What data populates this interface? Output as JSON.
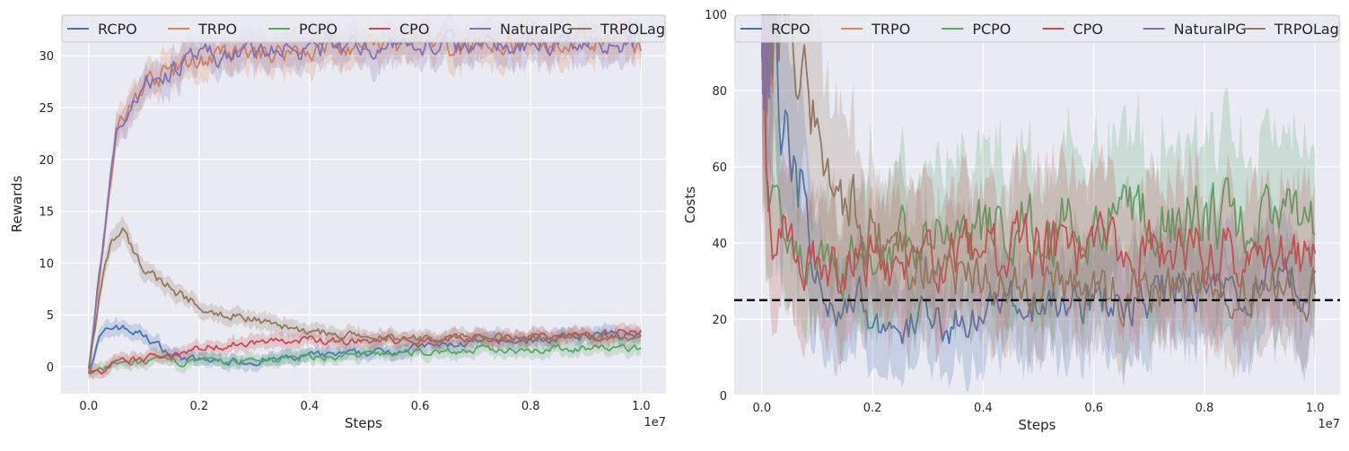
{
  "chart_data": [
    {
      "type": "line",
      "title": "",
      "xlabel": "Steps",
      "ylabel": "Rewards",
      "x_offset_label": "1e7",
      "xlim": [
        -0.05,
        1.045
      ],
      "ylim": [
        -2.6,
        34.0
      ],
      "xticks": [
        0.0,
        0.2,
        0.4,
        0.6,
        0.8,
        1.0
      ],
      "xtick_labels": [
        "0.0",
        "0.2",
        "0.4",
        "0.6",
        "0.8",
        "1.0"
      ],
      "yticks": [
        0,
        5,
        10,
        15,
        20,
        25,
        30
      ],
      "ytick_labels": [
        "0",
        "5",
        "10",
        "15",
        "20",
        "25",
        "30"
      ],
      "grid": true,
      "legend_position": "top",
      "series": [
        {
          "name": "RCPO",
          "color": "#4c72b0",
          "x": [
            0.0,
            0.02,
            0.05,
            0.1,
            0.15,
            0.2,
            0.3,
            0.4,
            0.5,
            0.6,
            0.7,
            0.8,
            0.9,
            1.0
          ],
          "values": [
            -0.4,
            2.8,
            4.0,
            3.0,
            1.2,
            0.6,
            0.5,
            1.0,
            1.3,
            1.9,
            2.3,
            2.5,
            3.0,
            3.2
          ]
        },
        {
          "name": "TRPO",
          "color": "#dd8452",
          "x": [
            0.0,
            0.02,
            0.05,
            0.1,
            0.15,
            0.2,
            0.3,
            0.4,
            0.5,
            0.6,
            0.7,
            0.8,
            0.9,
            1.0
          ],
          "values": [
            -0.4,
            9.0,
            22.5,
            27.2,
            28.6,
            29.6,
            30.2,
            30.6,
            30.8,
            31.0,
            31.1,
            31.2,
            31.3,
            31.3
          ]
        },
        {
          "name": "PCPO",
          "color": "#55a868",
          "x": [
            0.0,
            0.02,
            0.05,
            0.1,
            0.15,
            0.2,
            0.3,
            0.4,
            0.5,
            0.6,
            0.7,
            0.8,
            0.9,
            1.0
          ],
          "values": [
            -0.4,
            -0.3,
            0.2,
            0.5,
            0.5,
            0.4,
            0.6,
            0.9,
            1.1,
            1.4,
            1.6,
            1.7,
            1.8,
            1.8
          ]
        },
        {
          "name": "CPO",
          "color": "#c44e52",
          "x": [
            0.0,
            0.02,
            0.05,
            0.1,
            0.15,
            0.2,
            0.3,
            0.4,
            0.5,
            0.6,
            0.7,
            0.8,
            0.9,
            1.0
          ],
          "values": [
            -0.4,
            -0.6,
            0.3,
            0.8,
            1.2,
            1.8,
            2.4,
            2.5,
            2.5,
            2.6,
            2.8,
            2.9,
            3.0,
            3.3
          ]
        },
        {
          "name": "NaturalPG",
          "color": "#8172b3",
          "x": [
            0.0,
            0.02,
            0.05,
            0.1,
            0.15,
            0.2,
            0.3,
            0.4,
            0.5,
            0.6,
            0.7,
            0.8,
            0.9,
            1.0
          ],
          "values": [
            -0.4,
            9.2,
            22.7,
            27.4,
            28.7,
            29.7,
            30.3,
            30.7,
            30.9,
            31.1,
            31.2,
            31.3,
            31.4,
            31.4
          ]
        },
        {
          "name": "TRPOLag",
          "color": "#937860",
          "x": [
            0.0,
            0.02,
            0.04,
            0.06,
            0.08,
            0.1,
            0.15,
            0.2,
            0.3,
            0.4,
            0.5,
            0.6,
            0.7,
            0.8,
            0.9,
            1.0
          ],
          "values": [
            -0.4,
            7.0,
            12.0,
            13.0,
            11.0,
            9.5,
            7.5,
            5.8,
            4.6,
            3.4,
            2.8,
            2.7,
            2.7,
            2.8,
            2.8,
            2.8
          ]
        }
      ]
    },
    {
      "type": "line",
      "title": "",
      "xlabel": "Steps",
      "ylabel": "Costs",
      "x_offset_label": "1e7",
      "xlim": [
        -0.05,
        1.045
      ],
      "ylim": [
        0,
        100
      ],
      "xticks": [
        0.0,
        0.2,
        0.4,
        0.6,
        0.8,
        1.0
      ],
      "xtick_labels": [
        "0.0",
        "0.2",
        "0.4",
        "0.6",
        "0.8",
        "1.0"
      ],
      "yticks": [
        0,
        20,
        40,
        60,
        80,
        100
      ],
      "ytick_labels": [
        "0",
        "20",
        "40",
        "60",
        "80",
        "100"
      ],
      "grid": true,
      "legend_position": "top",
      "threshold": 25,
      "series": [
        {
          "name": "RCPO",
          "color": "#4c72b0",
          "x": [
            0.0,
            0.02,
            0.03,
            0.05,
            0.07,
            0.1,
            0.15,
            0.2,
            0.25,
            0.3,
            0.35,
            0.4,
            0.5,
            0.6,
            0.7,
            0.8,
            0.9,
            1.0
          ],
          "values": [
            100,
            98,
            80,
            64,
            55,
            30,
            25,
            22,
            18,
            20,
            19,
            23,
            24,
            25,
            26,
            27,
            28,
            29
          ]
        },
        {
          "name": "TRPO",
          "color": "#dd8452",
          "x": [
            0.0,
            0.01,
            0.02
          ],
          "values": [
            100,
            100,
            100
          ]
        },
        {
          "name": "PCPO",
          "color": "#55a868",
          "x": [
            0.0,
            0.01,
            0.02,
            0.05,
            0.1,
            0.15,
            0.2,
            0.3,
            0.4,
            0.5,
            0.6,
            0.7,
            0.8,
            0.9,
            1.0
          ],
          "values": [
            100,
            60,
            48,
            40,
            36,
            35,
            38,
            41,
            43,
            45,
            46,
            45,
            47,
            46,
            44
          ]
        },
        {
          "name": "CPO",
          "color": "#c44e52",
          "x": [
            0.0,
            0.005,
            0.01,
            0.02,
            0.05,
            0.1,
            0.15,
            0.2,
            0.3,
            0.4,
            0.5,
            0.6,
            0.7,
            0.8,
            0.9,
            1.0
          ],
          "values": [
            100,
            90,
            55,
            45,
            40,
            37,
            35,
            34,
            36,
            37,
            38,
            37,
            37,
            38,
            37,
            36
          ]
        },
        {
          "name": "NaturalPG",
          "color": "#8172b3",
          "x": [
            0.0,
            0.01,
            0.02
          ],
          "values": [
            100,
            100,
            100
          ]
        },
        {
          "name": "TRPOLag",
          "color": "#937860",
          "x": [
            0.0,
            0.05,
            0.07,
            0.1,
            0.15,
            0.2,
            0.25,
            0.3,
            0.4,
            0.5,
            0.6,
            0.7,
            0.8,
            0.9,
            1.0
          ],
          "values": [
            100,
            100,
            80,
            66,
            50,
            42,
            36,
            33,
            30,
            28,
            27,
            27,
            28,
            28,
            29
          ]
        }
      ]
    }
  ]
}
